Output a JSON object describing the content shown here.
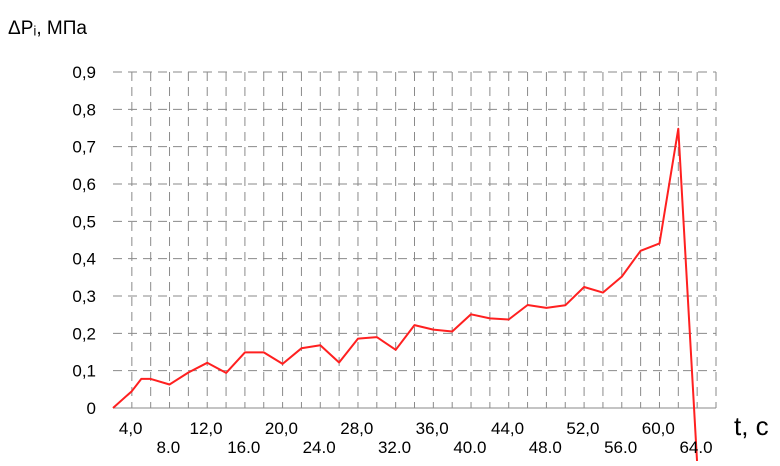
{
  "chart_data": {
    "type": "line",
    "ylabel": "ΔPᵢ, МПа",
    "xlabel": "t, c",
    "xlim": [
      0,
      64
    ],
    "ylim": [
      0,
      0.9
    ],
    "grid": true,
    "yticks": [
      {
        "value": 0.0,
        "label": "0"
      },
      {
        "value": 0.1,
        "label": "0,1"
      },
      {
        "value": 0.2,
        "label": "0,2"
      },
      {
        "value": 0.3,
        "label": "0,3"
      },
      {
        "value": 0.4,
        "label": "0,4"
      },
      {
        "value": 0.5,
        "label": "0,5"
      },
      {
        "value": 0.6,
        "label": "0,6"
      },
      {
        "value": 0.7,
        "label": "0,7"
      },
      {
        "value": 0.8,
        "label": "0,8"
      },
      {
        "value": 0.9,
        "label": "0,9"
      }
    ],
    "xticks": [
      {
        "value": 4,
        "label": "4,0",
        "row": "upper"
      },
      {
        "value": 8,
        "label": "8.0",
        "row": "lower"
      },
      {
        "value": 12,
        "label": "12,0",
        "row": "upper"
      },
      {
        "value": 16,
        "label": "16.0",
        "row": "lower"
      },
      {
        "value": 20,
        "label": "20,0",
        "row": "upper"
      },
      {
        "value": 24,
        "label": "24.0",
        "row": "lower"
      },
      {
        "value": 28,
        "label": "28,0",
        "row": "upper"
      },
      {
        "value": 32,
        "label": "32.0",
        "row": "lower"
      },
      {
        "value": 36,
        "label": "36,0",
        "row": "upper"
      },
      {
        "value": 40,
        "label": "40.0",
        "row": "lower"
      },
      {
        "value": 44,
        "label": "44,0",
        "row": "upper"
      },
      {
        "value": 48,
        "label": "48.0",
        "row": "lower"
      },
      {
        "value": 52,
        "label": "52,0",
        "row": "upper"
      },
      {
        "value": 56,
        "label": "56.0",
        "row": "lower"
      },
      {
        "value": 60,
        "label": "60,0",
        "row": "upper"
      },
      {
        "value": 64,
        "label": "64.0",
        "row": "lower"
      }
    ],
    "series": [
      {
        "color": "#ff2020",
        "x": [
          0,
          2,
          3,
          4,
          6,
          8,
          10,
          12,
          14,
          16,
          18,
          20,
          22,
          24,
          26,
          28,
          30,
          32,
          34,
          36,
          38,
          40,
          42,
          44,
          46,
          48,
          50,
          52,
          54,
          56,
          58,
          60,
          62
        ],
        "y": [
          0.0,
          0.045,
          0.078,
          0.078,
          0.063,
          0.095,
          0.121,
          0.094,
          0.149,
          0.149,
          0.118,
          0.16,
          0.168,
          0.122,
          0.186,
          0.19,
          0.156,
          0.222,
          0.21,
          0.205,
          0.251,
          0.24,
          0.237,
          0.276,
          0.268,
          0.275,
          0.324,
          0.309,
          0.352,
          0.421,
          0.441,
          0.748,
          -0.15
        ]
      }
    ]
  }
}
